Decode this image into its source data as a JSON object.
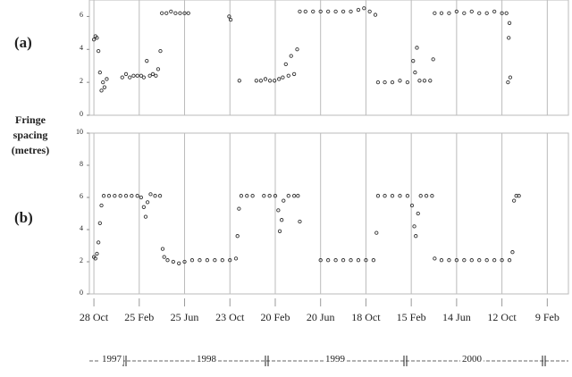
{
  "chart_data": {
    "type": "scatter",
    "ylabel": "Fringe spacing (metres)",
    "grid": "x",
    "color": "#333333",
    "xlim": [
      -12,
      1256
    ],
    "xticks": [
      {
        "value": 0,
        "label": "28 Oct"
      },
      {
        "value": 120,
        "label": "25 Feb"
      },
      {
        "value": 240,
        "label": "25 Jun"
      },
      {
        "value": 360,
        "label": "23 Oct"
      },
      {
        "value": 480,
        "label": "20 Feb"
      },
      {
        "value": 600,
        "label": "20 Jun"
      },
      {
        "value": 720,
        "label": "18 Oct"
      },
      {
        "value": 840,
        "label": "15 Feb"
      },
      {
        "value": 960,
        "label": "14 Jun"
      },
      {
        "value": 1080,
        "label": "12 Oct"
      },
      {
        "value": 1200,
        "label": "9 Feb"
      }
    ],
    "years": [
      "1997",
      "1998",
      "1999",
      "2000"
    ],
    "panels": [
      {
        "label": "(a)",
        "ylim": [
          0,
          7
        ],
        "yticks": [
          0,
          2,
          4,
          6
        ],
        "x": [
          0,
          4,
          8,
          12,
          16,
          20,
          24,
          28,
          34,
          75,
          85,
          95,
          105,
          115,
          125,
          132,
          140,
          148,
          156,
          164,
          170,
          176,
          180,
          192,
          204,
          216,
          228,
          240,
          250,
          358,
          362,
          385,
          430,
          442,
          454,
          466,
          478,
          490,
          500,
          508,
          515,
          522,
          530,
          538,
          545,
          560,
          580,
          600,
          620,
          640,
          660,
          680,
          700,
          715,
          730,
          745,
          752,
          770,
          790,
          810,
          830,
          845,
          850,
          855,
          862,
          875,
          890,
          898,
          902,
          920,
          940,
          960,
          980,
          1000,
          1020,
          1040,
          1060,
          1080,
          1092,
          1096,
          1098,
          1100,
          1102
        ],
        "values": [
          4.6,
          4.8,
          4.7,
          3.9,
          2.6,
          1.5,
          2.0,
          1.7,
          2.2,
          2.3,
          2.5,
          2.3,
          2.4,
          2.4,
          2.4,
          2.3,
          3.3,
          2.4,
          2.5,
          2.4,
          2.8,
          3.9,
          6.2,
          6.2,
          6.3,
          6.2,
          6.2,
          6.2,
          6.2,
          6.0,
          5.8,
          2.1,
          2.1,
          2.1,
          2.2,
          2.1,
          2.1,
          2.2,
          2.3,
          3.1,
          2.4,
          3.6,
          2.5,
          4.0,
          6.3,
          6.3,
          6.3,
          6.3,
          6.3,
          6.3,
          6.3,
          6.3,
          6.4,
          6.5,
          6.3,
          6.1,
          2.0,
          2.0,
          2.0,
          2.1,
          2.0,
          3.3,
          2.6,
          4.1,
          2.1,
          2.1,
          2.1,
          3.4,
          6.2,
          6.2,
          6.2,
          6.3,
          6.2,
          6.3,
          6.2,
          6.2,
          6.3,
          6.2,
          6.2,
          2.0,
          4.7,
          5.6,
          2.3
        ]
      },
      {
        "label": "(b)",
        "ylim": [
          0,
          10
        ],
        "yticks": [
          0,
          2,
          4,
          6,
          8,
          10
        ],
        "x": [
          0,
          4,
          8,
          12,
          16,
          20,
          26,
          40,
          55,
          70,
          85,
          100,
          115,
          125,
          132,
          137,
          142,
          150,
          162,
          175,
          182,
          186,
          195,
          210,
          225,
          240,
          260,
          280,
          300,
          320,
          340,
          360,
          376,
          380,
          384,
          390,
          405,
          420,
          450,
          465,
          480,
          488,
          492,
          497,
          502,
          515,
          530,
          540,
          545,
          600,
          620,
          640,
          660,
          680,
          700,
          720,
          740,
          748,
          752,
          770,
          790,
          810,
          830,
          842,
          848,
          852,
          858,
          865,
          880,
          895,
          902,
          920,
          940,
          960,
          980,
          1000,
          1020,
          1040,
          1060,
          1080,
          1100,
          1108,
          1112,
          1118,
          1125
        ],
        "values": [
          2.3,
          2.2,
          2.5,
          3.2,
          4.4,
          5.5,
          6.1,
          6.1,
          6.1,
          6.1,
          6.1,
          6.1,
          6.1,
          6.0,
          5.4,
          4.8,
          5.7,
          6.2,
          6.1,
          6.1,
          2.8,
          2.3,
          2.1,
          2.0,
          1.9,
          2.0,
          2.1,
          2.1,
          2.1,
          2.1,
          2.1,
          2.1,
          2.2,
          3.6,
          5.3,
          6.1,
          6.1,
          6.1,
          6.1,
          6.1,
          6.1,
          5.2,
          3.9,
          4.6,
          5.8,
          6.1,
          6.1,
          6.1,
          4.5,
          2.1,
          2.1,
          2.1,
          2.1,
          2.1,
          2.1,
          2.1,
          2.1,
          3.8,
          6.1,
          6.1,
          6.1,
          6.1,
          6.1,
          5.5,
          4.2,
          3.6,
          5.0,
          6.1,
          6.1,
          6.1,
          2.2,
          2.1,
          2.1,
          2.1,
          2.1,
          2.1,
          2.1,
          2.1,
          2.1,
          2.1,
          2.1,
          2.6,
          5.8,
          6.1,
          6.1
        ]
      }
    ]
  }
}
